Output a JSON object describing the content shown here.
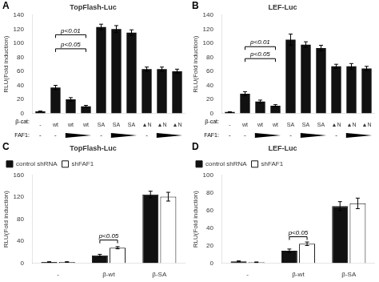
{
  "chart_data": [
    {
      "type": "bar",
      "panel": "A",
      "title": "TopFlash-Luc",
      "ylabel": "RLU(Fold induction)",
      "categories": [
        "-",
        "wt",
        "wt",
        "wt",
        "SA",
        "SA",
        "SA",
        "▲N",
        "▲N",
        "▲N"
      ],
      "values": [
        3,
        37,
        20,
        10,
        123,
        120,
        115,
        63,
        63,
        60
      ],
      "errors": [
        0.5,
        3,
        2.5,
        1.5,
        4,
        5,
        4,
        3,
        3,
        3
      ],
      "faf1": [
        0,
        0,
        1,
        2,
        0,
        1,
        2,
        0,
        1,
        2
      ],
      "row_labels": [
        "β-cat:",
        "FAF1:"
      ],
      "annotations": [
        {
          "text": "p<0.01",
          "x1": 1,
          "x2": 3,
          "y": 112
        },
        {
          "text": "p<0.05",
          "x1": 1,
          "x2": 3,
          "y": 92
        }
      ],
      "color": "#111111",
      "ylim": [
        0,
        140
      ],
      "yticks": [
        0,
        20,
        40,
        60,
        80,
        100,
        120,
        140
      ],
      "grid": false
    },
    {
      "type": "bar",
      "panel": "B",
      "title": "LEF-Luc",
      "ylabel": "RLU(Fold induction)",
      "categories": [
        "-",
        "wt",
        "wt",
        "wt",
        "SA",
        "SA",
        "SA",
        "▲N",
        "▲N",
        "▲N"
      ],
      "values": [
        2,
        28,
        17,
        11,
        105,
        98,
        93,
        67,
        67,
        64
      ],
      "errors": [
        0.5,
        3,
        2,
        1.5,
        8,
        4,
        4,
        3,
        4,
        3
      ],
      "faf1": [
        0,
        0,
        1,
        2,
        0,
        1,
        2,
        0,
        1,
        2
      ],
      "row_labels": [
        "β-cat:",
        "FAF1:"
      ],
      "annotations": [
        {
          "text": "p<0.01",
          "x1": 1,
          "x2": 3,
          "y": 95
        },
        {
          "text": "p<0.05",
          "x1": 1,
          "x2": 3,
          "y": 78
        }
      ],
      "color": "#111111",
      "ylim": [
        0,
        140
      ],
      "yticks": [
        0,
        20,
        40,
        60,
        80,
        100,
        120,
        140
      ],
      "grid": false
    },
    {
      "type": "bar",
      "panel": "C",
      "title": "TopFlash-Luc",
      "ylabel": "RLU(Fold induction)",
      "categories": [
        "-",
        "β-wt",
        "β-SA"
      ],
      "series": [
        {
          "name": "control shRNA",
          "color": "#111111",
          "values": [
            2,
            14,
            125
          ],
          "errors": [
            0.5,
            2,
            6
          ]
        },
        {
          "name": "shFAF1",
          "color": "#ffffff",
          "values": [
            2,
            28,
            121
          ],
          "errors": [
            0.5,
            2,
            8
          ]
        }
      ],
      "annotations": [
        {
          "text": "p<0.05",
          "x": 1,
          "y": 42
        }
      ],
      "ylim": [
        0,
        160
      ],
      "yticks": [
        0,
        40,
        80,
        120,
        160
      ],
      "grid": false,
      "legend": "upper left"
    },
    {
      "type": "bar",
      "panel": "D",
      "title": "LEF-Luc",
      "ylabel": "RLU(Fold induction)",
      "categories": [
        "-",
        "β-wt",
        "β-SA"
      ],
      "series": [
        {
          "name": "control shRNA",
          "color": "#111111",
          "values": [
            2,
            14,
            65
          ],
          "errors": [
            0.5,
            2,
            5
          ]
        },
        {
          "name": "shFAF1",
          "color": "#ffffff",
          "values": [
            1,
            22,
            68
          ],
          "errors": [
            0.3,
            2,
            6
          ]
        }
      ],
      "annotations": [
        {
          "text": "p<0.05",
          "x": 1,
          "y": 30
        }
      ],
      "ylim": [
        0,
        100
      ],
      "yticks": [
        0,
        20,
        40,
        60,
        80,
        100
      ],
      "grid": false,
      "legend": "upper left"
    }
  ]
}
